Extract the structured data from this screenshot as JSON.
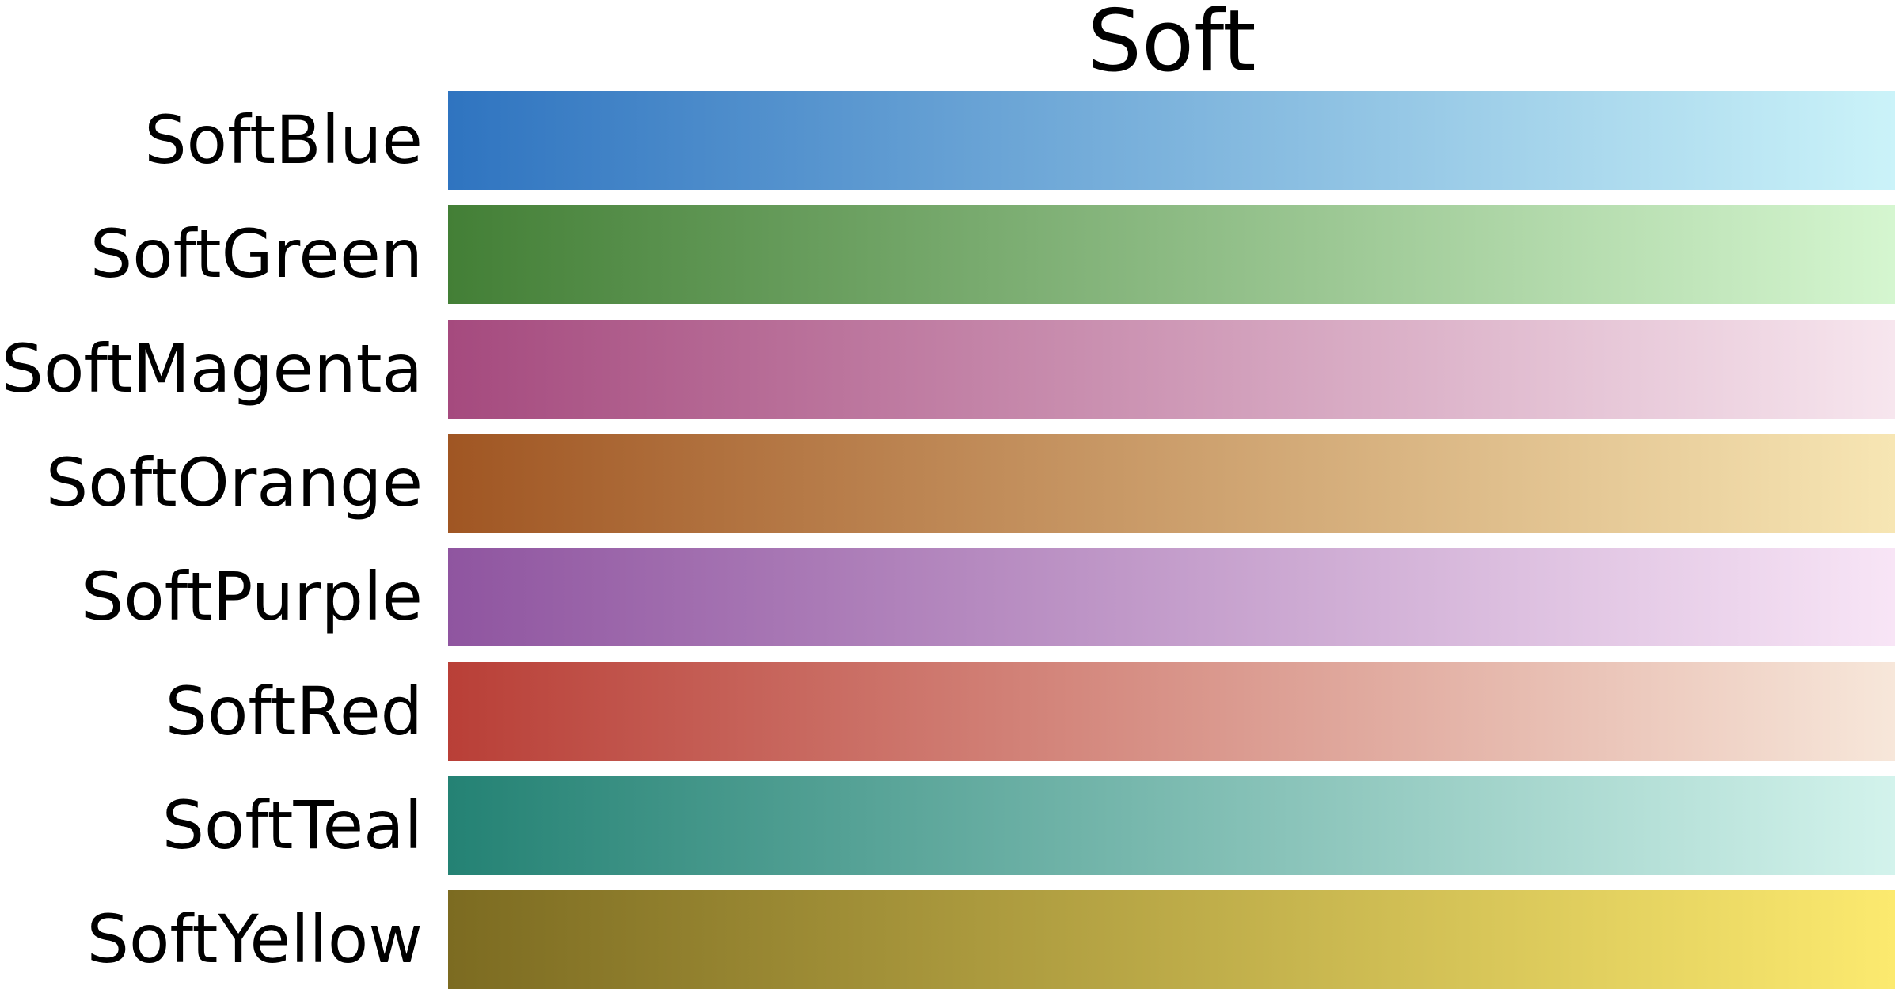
{
  "chart_data": {
    "type": "heatmap",
    "title": "Soft",
    "rows": [
      {
        "label": "SoftBlue",
        "colors": [
          "#2f74c0",
          "#cbf3f9"
        ]
      },
      {
        "label": "SoftGreen",
        "colors": [
          "#437f36",
          "#d5f6d0"
        ]
      },
      {
        "label": "SoftMagenta",
        "colors": [
          "#a54a7e",
          "#f7e6ee"
        ]
      },
      {
        "label": "SoftOrange",
        "colors": [
          "#a05623",
          "#f7e6b4"
        ]
      },
      {
        "label": "SoftPurple",
        "colors": [
          "#8f55a0",
          "#f8e5f6"
        ]
      },
      {
        "label": "SoftRed",
        "colors": [
          "#b93f37",
          "#f7e7da"
        ]
      },
      {
        "label": "SoftTeal",
        "colors": [
          "#248274",
          "#d3f3ec"
        ]
      },
      {
        "label": "SoftYellow",
        "colors": [
          "#7c6b21",
          "#fcea6f"
        ]
      }
    ]
  }
}
